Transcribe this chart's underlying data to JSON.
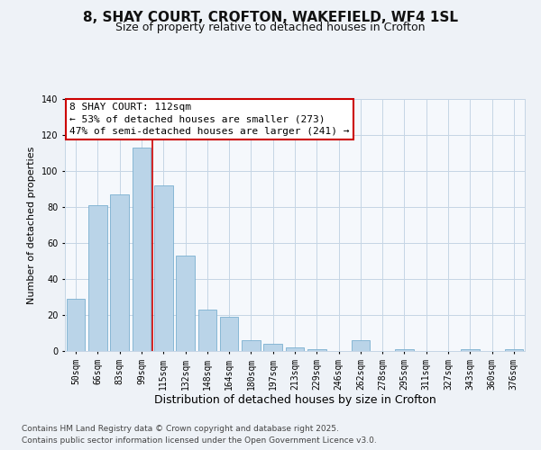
{
  "title": "8, SHAY COURT, CROFTON, WAKEFIELD, WF4 1SL",
  "subtitle": "Size of property relative to detached houses in Crofton",
  "xlabel": "Distribution of detached houses by size in Crofton",
  "ylabel": "Number of detached properties",
  "categories": [
    "50sqm",
    "66sqm",
    "83sqm",
    "99sqm",
    "115sqm",
    "132sqm",
    "148sqm",
    "164sqm",
    "180sqm",
    "197sqm",
    "213sqm",
    "229sqm",
    "246sqm",
    "262sqm",
    "278sqm",
    "295sqm",
    "311sqm",
    "327sqm",
    "343sqm",
    "360sqm",
    "376sqm"
  ],
  "values": [
    29,
    81,
    87,
    113,
    92,
    53,
    23,
    19,
    6,
    4,
    2,
    1,
    0,
    6,
    0,
    1,
    0,
    0,
    1,
    0,
    1
  ],
  "bar_color": "#bad4e8",
  "bar_edge_color": "#7ab0d0",
  "vline_color": "#cc0000",
  "vline_index": 3.5,
  "annotation_title": "8 SHAY COURT: 112sqm",
  "annotation_line1": "← 53% of detached houses are smaller (273)",
  "annotation_line2": "47% of semi-detached houses are larger (241) →",
  "annotation_box_color": "#cc0000",
  "ylim": [
    0,
    140
  ],
  "yticks": [
    0,
    20,
    40,
    60,
    80,
    100,
    120,
    140
  ],
  "footnote1": "Contains HM Land Registry data © Crown copyright and database right 2025.",
  "footnote2": "Contains public sector information licensed under the Open Government Licence v3.0.",
  "bg_color": "#eef2f7",
  "plot_bg_color": "#f5f8fc",
  "grid_color": "#c5d5e5",
  "title_fontsize": 11,
  "subtitle_fontsize": 9,
  "xlabel_fontsize": 9,
  "ylabel_fontsize": 8,
  "tick_fontsize": 7,
  "annotation_fontsize": 8,
  "footnote_fontsize": 6.5
}
